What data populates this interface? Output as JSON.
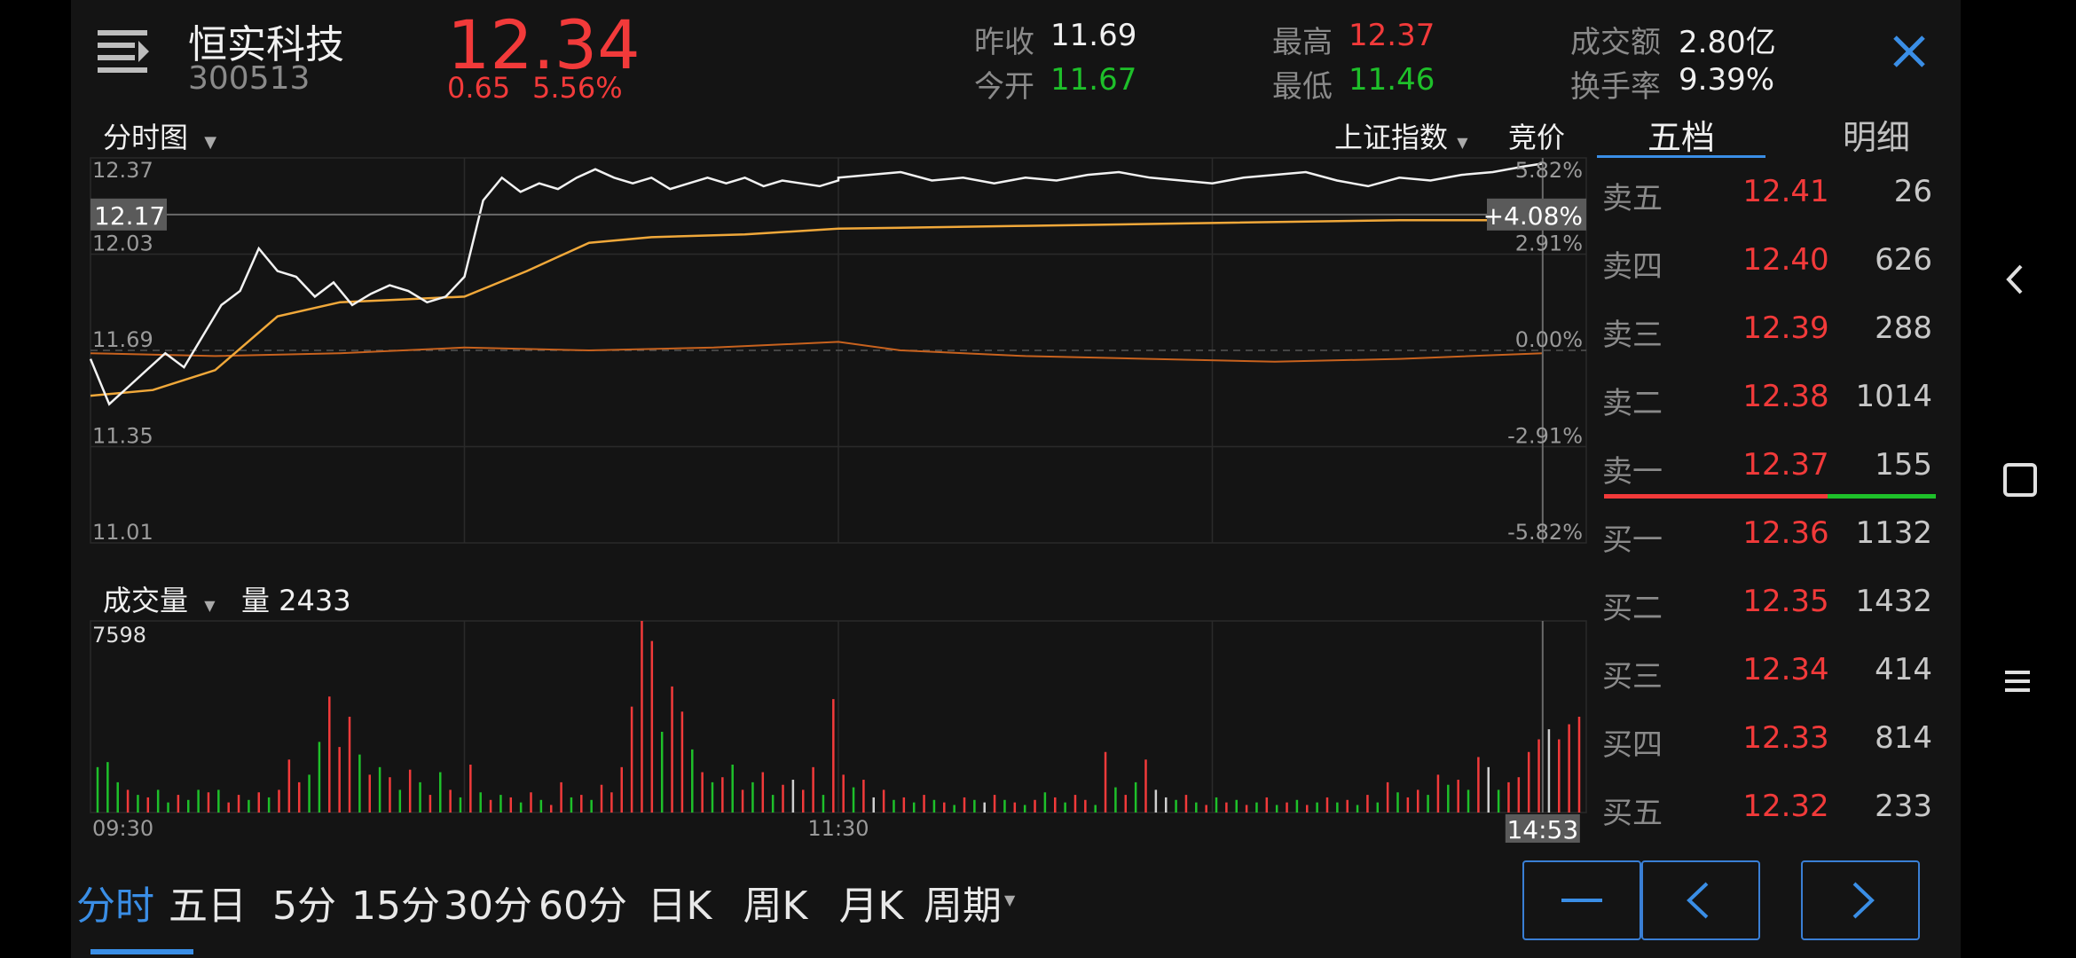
{
  "header": {
    "stock_name": "恒实科技",
    "stock_code": "300513",
    "price": "12.34",
    "change": "0.65",
    "change_pct": "5.56%",
    "prev_close_label": "昨收",
    "prev_close": "11.69",
    "open_label": "今开",
    "open": "11.67",
    "high_label": "最高",
    "high": "12.37",
    "low_label": "最低",
    "low": "11.46",
    "turnover_label": "成交额",
    "turnover": "2.80亿",
    "turnover_rate_label": "换手率",
    "turnover_rate": "9.39%"
  },
  "chart_controls": {
    "chart_type": "分时图",
    "index_selector": "上证指数",
    "auction": "竞价",
    "volume_label": "成交量",
    "volume_value": "量 2433"
  },
  "chart_data": {
    "type": "line",
    "y_ticks_left": [
      "12.37",
      "12.03",
      "11.69",
      "11.35",
      "11.01"
    ],
    "y_ticks_right": [
      "5.82%",
      "2.91%",
      "0.00%",
      "-2.91%",
      "-5.82%"
    ],
    "ylim": [
      11.01,
      12.37
    ],
    "cursor_price": "12.17",
    "cursor_pct": "+4.08%",
    "cursor_time": "14:53",
    "x_ticks": [
      "09:30",
      "11:30"
    ],
    "volume_max_label": "7598",
    "series": [
      {
        "name": "price",
        "x": [
          "09:30",
          "09:33",
          "09:36",
          "09:39",
          "09:42",
          "09:45",
          "09:48",
          "09:51",
          "09:54",
          "09:57",
          "10:00",
          "10:03",
          "10:06",
          "10:09",
          "10:12",
          "10:15",
          "10:18",
          "10:21",
          "10:24",
          "10:27",
          "10:30",
          "10:33",
          "10:36",
          "10:39",
          "10:42",
          "10:45",
          "10:48",
          "10:51",
          "10:54",
          "10:57",
          "11:00",
          "11:03",
          "11:06",
          "11:09",
          "11:12",
          "11:15",
          "11:18",
          "11:21",
          "11:24",
          "11:27",
          "11:30",
          "13:00",
          "13:05",
          "13:10",
          "13:15",
          "13:20",
          "13:25",
          "13:30",
          "13:35",
          "13:40",
          "13:45",
          "13:50",
          "13:55",
          "14:00",
          "14:05",
          "14:10",
          "14:15",
          "14:20",
          "14:25",
          "14:30",
          "14:35",
          "14:40",
          "14:45",
          "14:50",
          "14:53"
        ],
        "values": [
          11.66,
          11.5,
          11.56,
          11.62,
          11.68,
          11.63,
          11.74,
          11.85,
          11.9,
          12.05,
          11.97,
          11.95,
          11.88,
          11.93,
          11.85,
          11.89,
          11.92,
          11.9,
          11.86,
          11.88,
          11.95,
          12.22,
          12.3,
          12.25,
          12.28,
          12.26,
          12.3,
          12.33,
          12.3,
          12.28,
          12.3,
          12.26,
          12.28,
          12.3,
          12.28,
          12.3,
          12.27,
          12.29,
          12.28,
          12.27,
          12.29,
          12.3,
          12.31,
          12.32,
          12.29,
          12.3,
          12.28,
          12.3,
          12.29,
          12.31,
          12.32,
          12.3,
          12.29,
          12.28,
          12.3,
          12.31,
          12.32,
          12.29,
          12.27,
          12.3,
          12.29,
          12.31,
          12.32,
          12.34,
          12.35
        ]
      },
      {
        "name": "avg",
        "x": [
          "09:30",
          "09:40",
          "09:50",
          "10:00",
          "10:10",
          "10:20",
          "10:30",
          "10:40",
          "10:50",
          "11:00",
          "11:15",
          "11:30",
          "13:30",
          "14:00",
          "14:30",
          "14:53"
        ],
        "values": [
          11.53,
          11.55,
          11.62,
          11.81,
          11.86,
          11.87,
          11.88,
          11.97,
          12.07,
          12.09,
          12.1,
          12.12,
          12.13,
          12.14,
          12.15,
          12.15
        ]
      },
      {
        "name": "index",
        "x": [
          "09:30",
          "09:50",
          "10:10",
          "10:30",
          "10:50",
          "11:10",
          "11:30",
          "13:10",
          "13:30",
          "13:50",
          "14:10",
          "14:30",
          "14:53"
        ],
        "values": [
          11.68,
          11.67,
          11.68,
          11.7,
          11.69,
          11.7,
          11.72,
          11.69,
          11.67,
          11.66,
          11.65,
          11.66,
          11.68
        ]
      }
    ],
    "volume": [
      {
        "v": 1800,
        "c": "g"
      },
      {
        "v": 2000,
        "c": "g"
      },
      {
        "v": 1200,
        "c": "g"
      },
      {
        "v": 900,
        "c": "r"
      },
      {
        "v": 700,
        "c": "g"
      },
      {
        "v": 600,
        "c": "r"
      },
      {
        "v": 900,
        "c": "g"
      },
      {
        "v": 400,
        "c": "g"
      },
      {
        "v": 700,
        "c": "r"
      },
      {
        "v": 500,
        "c": "g"
      },
      {
        "v": 900,
        "c": "g"
      },
      {
        "v": 800,
        "c": "r"
      },
      {
        "v": 900,
        "c": "g"
      },
      {
        "v": 400,
        "c": "r"
      },
      {
        "v": 700,
        "c": "r"
      },
      {
        "v": 500,
        "c": "g"
      },
      {
        "v": 800,
        "c": "r"
      },
      {
        "v": 600,
        "c": "g"
      },
      {
        "v": 900,
        "c": "r"
      },
      {
        "v": 2100,
        "c": "r"
      },
      {
        "v": 1200,
        "c": "r"
      },
      {
        "v": 1500,
        "c": "g"
      },
      {
        "v": 2800,
        "c": "g"
      },
      {
        "v": 4600,
        "c": "r"
      },
      {
        "v": 2600,
        "c": "r"
      },
      {
        "v": 3800,
        "c": "r"
      },
      {
        "v": 2300,
        "c": "g"
      },
      {
        "v": 1500,
        "c": "r"
      },
      {
        "v": 1800,
        "c": "g"
      },
      {
        "v": 1400,
        "c": "r"
      },
      {
        "v": 900,
        "c": "g"
      },
      {
        "v": 1700,
        "c": "r"
      },
      {
        "v": 1200,
        "c": "g"
      },
      {
        "v": 700,
        "c": "r"
      },
      {
        "v": 1600,
        "c": "g"
      },
      {
        "v": 900,
        "c": "r"
      },
      {
        "v": 600,
        "c": "g"
      },
      {
        "v": 1900,
        "c": "r"
      },
      {
        "v": 800,
        "c": "g"
      },
      {
        "v": 500,
        "c": "r"
      },
      {
        "v": 700,
        "c": "g"
      },
      {
        "v": 600,
        "c": "r"
      },
      {
        "v": 400,
        "c": "g"
      },
      {
        "v": 800,
        "c": "r"
      },
      {
        "v": 500,
        "c": "g"
      },
      {
        "v": 300,
        "c": "r"
      },
      {
        "v": 1200,
        "c": "r"
      },
      {
        "v": 600,
        "c": "g"
      },
      {
        "v": 700,
        "c": "r"
      },
      {
        "v": 500,
        "c": "g"
      },
      {
        "v": 1100,
        "c": "r"
      },
      {
        "v": 800,
        "c": "r"
      },
      {
        "v": 1800,
        "c": "r"
      },
      {
        "v": 4200,
        "c": "r"
      },
      {
        "v": 7598,
        "c": "r"
      },
      {
        "v": 6800,
        "c": "r"
      },
      {
        "v": 3200,
        "c": "g"
      },
      {
        "v": 5000,
        "c": "r"
      },
      {
        "v": 4000,
        "c": "r"
      },
      {
        "v": 2500,
        "c": "g"
      },
      {
        "v": 1600,
        "c": "r"
      },
      {
        "v": 1200,
        "c": "g"
      },
      {
        "v": 1400,
        "c": "r"
      },
      {
        "v": 1900,
        "c": "g"
      },
      {
        "v": 900,
        "c": "r"
      },
      {
        "v": 1200,
        "c": "g"
      },
      {
        "v": 1600,
        "c": "r"
      },
      {
        "v": 700,
        "c": "g"
      },
      {
        "v": 1100,
        "c": "r"
      },
      {
        "v": 1300,
        "c": "w"
      },
      {
        "v": 900,
        "c": "r"
      },
      {
        "v": 1800,
        "c": "r"
      },
      {
        "v": 700,
        "c": "g"
      },
      {
        "v": 4500,
        "c": "r"
      },
      {
        "v": 1500,
        "c": "r"
      },
      {
        "v": 1000,
        "c": "g"
      },
      {
        "v": 1300,
        "c": "r"
      },
      {
        "v": 600,
        "c": "w"
      },
      {
        "v": 900,
        "c": "r"
      },
      {
        "v": 500,
        "c": "g"
      },
      {
        "v": 600,
        "c": "r"
      },
      {
        "v": 400,
        "c": "g"
      },
      {
        "v": 700,
        "c": "r"
      },
      {
        "v": 500,
        "c": "g"
      },
      {
        "v": 400,
        "c": "r"
      },
      {
        "v": 300,
        "c": "g"
      },
      {
        "v": 600,
        "c": "r"
      },
      {
        "v": 500,
        "c": "g"
      },
      {
        "v": 400,
        "c": "w"
      },
      {
        "v": 700,
        "c": "r"
      },
      {
        "v": 500,
        "c": "g"
      },
      {
        "v": 400,
        "c": "r"
      },
      {
        "v": 300,
        "c": "g"
      },
      {
        "v": 500,
        "c": "r"
      },
      {
        "v": 800,
        "c": "g"
      },
      {
        "v": 600,
        "c": "r"
      },
      {
        "v": 400,
        "c": "g"
      },
      {
        "v": 700,
        "c": "r"
      },
      {
        "v": 500,
        "c": "r"
      },
      {
        "v": 300,
        "c": "g"
      },
      {
        "v": 2400,
        "c": "r"
      },
      {
        "v": 1000,
        "c": "g"
      },
      {
        "v": 700,
        "c": "r"
      },
      {
        "v": 1200,
        "c": "g"
      },
      {
        "v": 2100,
        "c": "r"
      },
      {
        "v": 900,
        "c": "w"
      },
      {
        "v": 600,
        "c": "w"
      },
      {
        "v": 500,
        "c": "g"
      },
      {
        "v": 700,
        "c": "r"
      },
      {
        "v": 400,
        "c": "g"
      },
      {
        "v": 300,
        "c": "r"
      },
      {
        "v": 600,
        "c": "g"
      },
      {
        "v": 400,
        "c": "r"
      },
      {
        "v": 500,
        "c": "g"
      },
      {
        "v": 300,
        "c": "r"
      },
      {
        "v": 400,
        "c": "g"
      },
      {
        "v": 600,
        "c": "r"
      },
      {
        "v": 300,
        "c": "g"
      },
      {
        "v": 400,
        "c": "r"
      },
      {
        "v": 500,
        "c": "g"
      },
      {
        "v": 300,
        "c": "r"
      },
      {
        "v": 400,
        "c": "g"
      },
      {
        "v": 600,
        "c": "r"
      },
      {
        "v": 400,
        "c": "g"
      },
      {
        "v": 500,
        "c": "r"
      },
      {
        "v": 300,
        "c": "g"
      },
      {
        "v": 700,
        "c": "r"
      },
      {
        "v": 400,
        "c": "g"
      },
      {
        "v": 1200,
        "c": "r"
      },
      {
        "v": 800,
        "c": "g"
      },
      {
        "v": 600,
        "c": "r"
      },
      {
        "v": 900,
        "c": "r"
      },
      {
        "v": 700,
        "c": "g"
      },
      {
        "v": 1500,
        "c": "r"
      },
      {
        "v": 1100,
        "c": "g"
      },
      {
        "v": 1300,
        "c": "r"
      },
      {
        "v": 900,
        "c": "g"
      },
      {
        "v": 2200,
        "c": "r"
      },
      {
        "v": 1800,
        "c": "w"
      },
      {
        "v": 900,
        "c": "g"
      },
      {
        "v": 1200,
        "c": "r"
      },
      {
        "v": 1400,
        "c": "r"
      },
      {
        "v": 2400,
        "c": "r"
      },
      {
        "v": 2900,
        "c": "r"
      },
      {
        "v": 3300,
        "c": "w"
      },
      {
        "v": 2900,
        "c": "r"
      },
      {
        "v": 3500,
        "c": "r"
      },
      {
        "v": 3800,
        "c": "r"
      }
    ]
  },
  "order_book": {
    "tabs": [
      "五档",
      "明细"
    ],
    "asks": [
      {
        "label": "卖五",
        "price": "12.41",
        "vol": "26"
      },
      {
        "label": "卖四",
        "price": "12.40",
        "vol": "626"
      },
      {
        "label": "卖三",
        "price": "12.39",
        "vol": "288"
      },
      {
        "label": "卖二",
        "price": "12.38",
        "vol": "1014"
      },
      {
        "label": "卖一",
        "price": "12.37",
        "vol": "155"
      }
    ],
    "bids": [
      {
        "label": "买一",
        "price": "12.36",
        "vol": "1132"
      },
      {
        "label": "买二",
        "price": "12.35",
        "vol": "1432"
      },
      {
        "label": "买三",
        "price": "12.34",
        "vol": "414"
      },
      {
        "label": "买四",
        "price": "12.33",
        "vol": "814"
      },
      {
        "label": "买五",
        "price": "12.32",
        "vol": "233"
      }
    ]
  },
  "period_tabs": [
    "分时",
    "五日",
    "5分",
    "15分",
    "30分",
    "60分",
    "日K",
    "周K",
    "月K",
    "周期"
  ],
  "active_tab": "分时",
  "colors": {
    "up": "#f23a3a",
    "down": "#1ec02a",
    "accent": "#3a8ee6",
    "avg": "#f0a83a",
    "index": "#c8621e"
  }
}
